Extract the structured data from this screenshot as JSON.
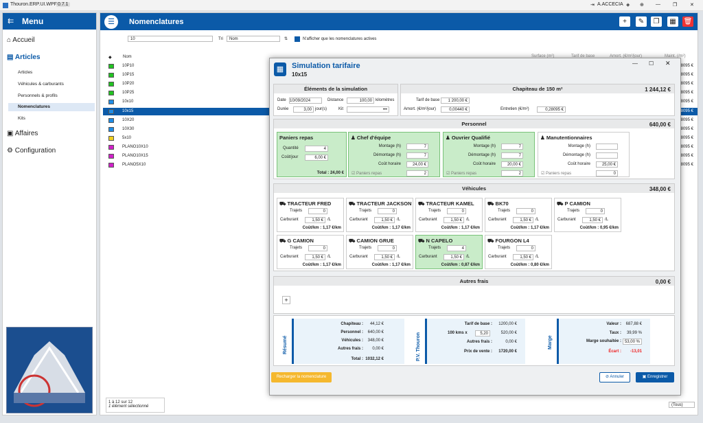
{
  "app": {
    "title": "Thouron.ERP.UI.WPF",
    "version": "0.7.1",
    "user": "A.ACCECIA"
  },
  "menu": {
    "title": "Menu",
    "items": [
      {
        "label": "Accueil"
      },
      {
        "label": "Articles"
      },
      {
        "label": "Affaires"
      },
      {
        "label": "Configuration"
      }
    ],
    "subitems": [
      "Articles",
      "Véhicules & carburants",
      "Personnels & profils",
      "Nomenclatures",
      "Kits"
    ]
  },
  "main": {
    "title": "Nomenclatures",
    "search_value": "10",
    "sort_label": "Tri",
    "sort_value": "Nom",
    "active_only": "N'afficher que les nomenclatures actives",
    "col_name": "Nom",
    "col_surface": "Surface (m²)",
    "col_tarif": "Tarif de base",
    "col_amort": "Amort. (€/m²/jour)",
    "col_maint": "Maint. (/m²)",
    "rows": [
      {
        "name": "10P10",
        "color": "#22c322",
        "maint": "28095 €"
      },
      {
        "name": "10P15",
        "color": "#22c322",
        "maint": "28095 €"
      },
      {
        "name": "10P20",
        "color": "#22c322",
        "maint": "28095 €"
      },
      {
        "name": "10P25",
        "color": "#22c322",
        "maint": "28095 €"
      },
      {
        "name": "10x10",
        "color": "#1e8ce6",
        "maint": "28095 €"
      },
      {
        "name": "10x15",
        "color": "#1e8ce6",
        "maint": "28095 €"
      },
      {
        "name": "10X20",
        "color": "#1e8ce6",
        "maint": "28095 €"
      },
      {
        "name": "10X30",
        "color": "#1e8ce6",
        "maint": "28095 €"
      },
      {
        "name": "5x10",
        "color": "#f0d020",
        "maint": "28095 €"
      },
      {
        "name": "PLANO10X10",
        "color": "#d020c8",
        "maint": "28095 €"
      },
      {
        "name": "PLANO10X15",
        "color": "#d020c8",
        "maint": "28095 €"
      },
      {
        "name": "PLANO5X10",
        "color": "#d020c8",
        "maint": "28095 €"
      }
    ],
    "footer_count": "1 à 12 sur 12",
    "footer_sel": "1 élément sélectionné",
    "footer_filter": "(Tous)"
  },
  "dialog": {
    "title": "Simulation tarifaire",
    "subtitle": "10x15",
    "elements": {
      "title": "Éléments de la simulation",
      "date_label": "Date",
      "date": "10/09/2024",
      "distance_label": "Distance",
      "distance": "100,00",
      "km": "kilomètres",
      "duree_label": "Durée",
      "duree": "3,00",
      "jours": "jour(s)",
      "kit_label": "Kit"
    },
    "chapiteau": {
      "title": "Chapiteau de 150 m²",
      "total": "1 244,12 €",
      "tarif_label": "Tarif de base",
      "tarif": "1 200,00 €",
      "amort_label": "Amort. (€/m²/jour)",
      "amort": "0,00440 €",
      "entretien_label": "Entretien (€/m²)",
      "entretien": "0,28095 €"
    },
    "personnel": {
      "title": "Personnel",
      "total": "640,00 €",
      "paniers": {
        "title": "Paniers repas",
        "qte_label": "Quantité",
        "qte": "4",
        "cout_label": "Coût/jour",
        "cout": "6,00 €",
        "total": "Total : 24,00 €"
      },
      "cards": [
        {
          "name": "Chef d'équipe",
          "montage": "7",
          "demontage": "7",
          "horaire": "24,00 €",
          "paniers": "2",
          "active": true
        },
        {
          "name": "Ouvrier Qualifié",
          "montage": "7",
          "demontage": "7",
          "horaire": "20,00 €",
          "paniers": "2",
          "active": true
        },
        {
          "name": "Manutentionnaires",
          "montage": "",
          "demontage": "",
          "horaire": "25,00 €",
          "paniers": "0",
          "active": false
        }
      ],
      "montage_label": "Montage (h)",
      "demontage_label": "Démontage (h)",
      "horaire_label": "Coût horaire",
      "paniers_label": "Paniers repas"
    },
    "vehicules": {
      "title": "Véhicules",
      "total": "348,00 €",
      "trajets_label": "Trajets",
      "carburant_label": "Carburant",
      "unit": "/L",
      "cards": [
        {
          "name": "TRACTEUR FRED",
          "trajets": "0",
          "carb": "1,50 €",
          "cout": "Coût/km : 1,17 €/km",
          "active": false
        },
        {
          "name": "TRACTEUR JACKSON",
          "trajets": "0",
          "carb": "1,50 €",
          "cout": "Coût/km : 1,17 €/km",
          "active": false
        },
        {
          "name": "TRACTEUR KAMEL",
          "trajets": "0",
          "carb": "1,50 €",
          "cout": "Coût/km : 1,17 €/km",
          "active": false
        },
        {
          "name": "BK70",
          "trajets": "0",
          "carb": "1,50 €",
          "cout": "Coût/km : 1,17 €/km",
          "active": false
        },
        {
          "name": "P CAMION",
          "trajets": "0",
          "carb": "1,50 €",
          "cout": "Coût/km : 0,95 €/km",
          "active": false
        },
        {
          "name": "G CAMION",
          "trajets": "0",
          "carb": "1,50 €",
          "cout": "Coût/km : 1,17 €/km",
          "active": false
        },
        {
          "name": "CAMION GRUE",
          "trajets": "0",
          "carb": "1,50 €",
          "cout": "Coût/km : 1,17 €/km",
          "active": false
        },
        {
          "name": "N CAPELO",
          "trajets": "4",
          "carb": "1,50 €",
          "cout": "Coût/km : 0,87 €/km",
          "active": true
        },
        {
          "name": "FOURGON L4",
          "trajets": "0",
          "carb": "1,50 €",
          "cout": "Coût/km : 0,80 €/km",
          "active": false
        }
      ]
    },
    "autres": {
      "title": "Autres frais",
      "total": "0,00 €"
    },
    "resume": {
      "title": "Résumé",
      "chapiteau": "Chapiteau :",
      "chapiteau_v": "44,12 €",
      "personnel": "Personnel :",
      "personnel_v": "640,00 €",
      "vehicules": "Véhicules :",
      "vehicules_v": "348,00 €",
      "autres": "Autres frais :",
      "autres_v": "0,00 €",
      "total": "Total :",
      "total_v": "1032,12 €"
    },
    "pv": {
      "title": "P.V. Thouron",
      "tarif": "Tarif de base :",
      "tarif_v": "1200,00 €",
      "kms": "100 kms x",
      "kms_f": "5,20",
      "kms_v": "520,00 €",
      "autres": "Autres frais :",
      "autres_v": "0,00 €",
      "prix": "Prix de vente :",
      "prix_v": "1720,00 €"
    },
    "marge": {
      "title": "Marge",
      "valeur": "Valeur :",
      "valeur_v": "687,88 €",
      "taux": "Taux :",
      "taux_v": "39,99 %",
      "souhaitee": "Marge souhaitée :",
      "souhaitee_v": "53,00 %",
      "ecart": "Écart :",
      "ecart_v": "-13,01"
    },
    "reload": "Recharger la nomenclature",
    "cancel": "Annuler",
    "save": "Enregistrer"
  }
}
